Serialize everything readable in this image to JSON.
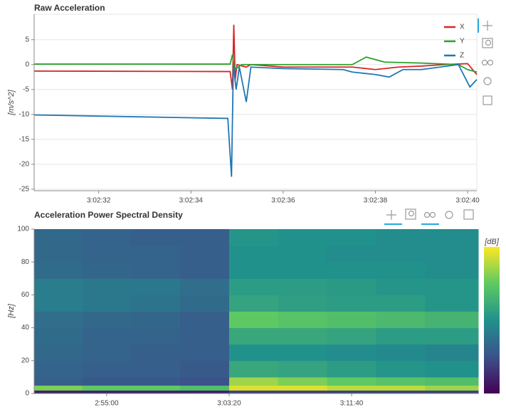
{
  "chart_data": [
    {
      "type": "line",
      "title": "Raw Acceleration",
      "y_label": "[m/s^2]",
      "xlim": [
        30.6,
        40.2
      ],
      "xticks": [
        {
          "value": 32,
          "label": "3:02:32"
        },
        {
          "value": 34,
          "label": "3:02:34"
        },
        {
          "value": 36,
          "label": "3:02:36"
        },
        {
          "value": 38,
          "label": "3:02:38"
        },
        {
          "value": 40,
          "label": "3:02:40"
        }
      ],
      "ylim": [
        -25.3,
        10.1
      ],
      "yticks": [
        5,
        0,
        -5,
        -10,
        -15,
        -20,
        -25
      ],
      "grid": true,
      "legend": "top-right",
      "series": [
        {
          "name": "X",
          "color": "#d62728",
          "x": [
            30.6,
            34.85,
            34.9,
            34.93,
            34.96,
            35.0,
            35.2,
            35.3,
            36,
            37.5,
            38,
            38.5,
            39,
            39.5,
            40,
            40.2
          ],
          "values": [
            -1.3,
            -1.4,
            -5,
            8,
            -3,
            0,
            -0.5,
            0,
            -0.5,
            -0.5,
            -1,
            -0.5,
            -0.3,
            0,
            0.2,
            -2
          ]
        },
        {
          "name": "Y",
          "color": "#2ca02c",
          "x": [
            30.6,
            34.85,
            34.9,
            34.95,
            35.1,
            37.5,
            37.8,
            38.2,
            39,
            39.8,
            40.0,
            40.2
          ],
          "values": [
            0.1,
            0.1,
            2,
            -1,
            0,
            0,
            1.5,
            0.5,
            0.3,
            0,
            -1,
            -1.5
          ]
        },
        {
          "name": "Z",
          "color": "#1f77b4",
          "x": [
            30.6,
            34.8,
            34.88,
            34.92,
            34.98,
            35.05,
            35.2,
            35.3,
            36,
            37.3,
            37.5,
            38,
            38.3,
            38.6,
            39,
            39.8,
            40.05,
            40.2
          ],
          "values": [
            -10.1,
            -10.8,
            -22.5,
            0,
            -5,
            -0.5,
            -7.5,
            -0.5,
            -0.8,
            -1,
            -1.5,
            -2,
            -2.5,
            -1,
            -1,
            0,
            -4.5,
            -3
          ]
        }
      ]
    },
    {
      "type": "heatmap",
      "title": "Acceleration Power Spectral Density",
      "y_label": "[Hz]",
      "colorbar_label": "[dB]",
      "xlim": [
        4,
        1817
      ],
      "xticks": [
        {
          "value": 300,
          "label": "2:55:00"
        },
        {
          "value": 800,
          "label": "3:03:20"
        },
        {
          "value": 1300,
          "label": "3:11:40"
        }
      ],
      "ylim": [
        0,
        100
      ],
      "yticks": [
        0,
        20,
        40,
        60,
        80,
        100
      ],
      "x_bins": [
        4,
        200,
        400,
        600,
        800,
        1000,
        1200,
        1400,
        1600,
        1817
      ],
      "y_bins": [
        0,
        2,
        5,
        10,
        20,
        30,
        40,
        50,
        60,
        70,
        80,
        90,
        100
      ],
      "zlim": [
        0,
        1
      ],
      "colors": [
        "#440154",
        "#3b528b",
        "#21918c",
        "#5ec962",
        "#fde725"
      ],
      "z": [
        [
          0.1,
          0.1,
          0.1,
          0.1,
          0.2,
          0.2,
          0.2,
          0.2,
          0.2
        ],
        [
          0.8,
          0.75,
          0.75,
          0.7,
          0.95,
          0.95,
          0.9,
          0.9,
          0.85
        ],
        [
          0.3,
          0.28,
          0.28,
          0.25,
          0.85,
          0.8,
          0.75,
          0.72,
          0.7
        ],
        [
          0.32,
          0.3,
          0.3,
          0.28,
          0.6,
          0.58,
          0.55,
          0.52,
          0.5
        ],
        [
          0.34,
          0.32,
          0.3,
          0.3,
          0.5,
          0.5,
          0.48,
          0.47,
          0.45
        ],
        [
          0.35,
          0.32,
          0.32,
          0.3,
          0.6,
          0.6,
          0.58,
          0.55,
          0.55
        ],
        [
          0.36,
          0.34,
          0.33,
          0.3,
          0.75,
          0.72,
          0.7,
          0.68,
          0.65
        ],
        [
          0.42,
          0.4,
          0.38,
          0.35,
          0.58,
          0.56,
          0.55,
          0.55,
          0.52
        ],
        [
          0.42,
          0.4,
          0.4,
          0.36,
          0.55,
          0.55,
          0.54,
          0.52,
          0.52
        ],
        [
          0.35,
          0.33,
          0.32,
          0.3,
          0.5,
          0.5,
          0.5,
          0.5,
          0.48
        ],
        [
          0.34,
          0.32,
          0.32,
          0.3,
          0.5,
          0.5,
          0.48,
          0.48,
          0.48
        ],
        [
          0.34,
          0.32,
          0.3,
          0.3,
          0.52,
          0.5,
          0.5,
          0.48,
          0.48
        ]
      ]
    }
  ]
}
